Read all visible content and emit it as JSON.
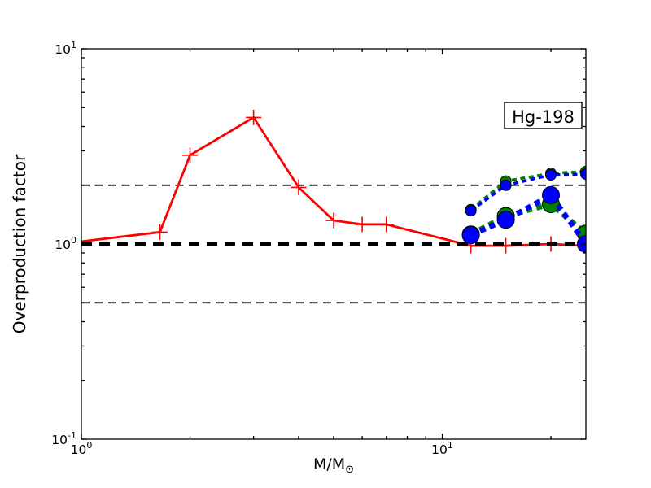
{
  "figure": {
    "background": "#ffffff"
  },
  "legend": {
    "label": "Hg-198"
  },
  "chart_data": {
    "type": "line",
    "title": "",
    "xlabel_main": "M/M",
    "xlabel_sub": "⊙",
    "ylabel": "Overproduction factor",
    "xscale": "log",
    "yscale": "log",
    "xlim": [
      1,
      25
    ],
    "ylim": [
      0.1,
      10
    ],
    "grid": false,
    "x_ticks": [
      {
        "v": 1,
        "base": "10",
        "exp": "0"
      },
      {
        "v": 10,
        "base": "10",
        "exp": "1"
      }
    ],
    "x_minor_ticks": [
      2,
      3,
      4,
      5,
      6,
      7,
      8,
      9,
      20
    ],
    "y_ticks": [
      {
        "v": 0.1,
        "base": "10",
        "exp": "-1"
      },
      {
        "v": 1,
        "base": "10",
        "exp": "0"
      },
      {
        "v": 10,
        "base": "10",
        "exp": "1"
      }
    ],
    "y_minor_ticks": [
      0.2,
      0.3,
      0.4,
      0.5,
      0.6,
      0.7,
      0.8,
      0.9,
      2,
      3,
      4,
      5,
      6,
      7,
      8,
      9
    ],
    "reference_lines": [
      {
        "name": "upper-tolerance-line",
        "y": 2.0,
        "color": "#000000",
        "lw": 1.7,
        "dash": [
          10,
          6.5
        ],
        "z": 2
      },
      {
        "name": "lower-tolerance-line",
        "y": 0.5,
        "color": "#000000",
        "lw": 1.7,
        "dash": [
          10,
          6.5
        ],
        "z": 2
      },
      {
        "name": "unity-reference-line",
        "y": 1.0,
        "color": "#000000",
        "lw": 4.8,
        "dash": [
          13,
          9
        ],
        "z": 4
      }
    ],
    "series": [
      {
        "name": "red-plus-series",
        "color": "#ff0000",
        "lw": 2.8,
        "marker": "plus",
        "marker_size": 9.5,
        "z": 3,
        "points": [
          [
            1,
            1.03
          ],
          [
            1.65,
            1.15
          ],
          [
            2,
            2.85
          ],
          [
            3,
            4.45
          ],
          [
            4,
            1.95
          ],
          [
            5,
            1.32
          ],
          [
            6,
            1.26
          ],
          [
            7,
            1.26
          ],
          [
            12,
            0.98
          ],
          [
            15,
            0.98
          ],
          [
            20,
            1.0
          ],
          [
            25,
            0.98
          ]
        ],
        "marker_points": [
          [
            1.65,
            1.15
          ],
          [
            2,
            2.85
          ],
          [
            3,
            4.45
          ],
          [
            4,
            1.95
          ],
          [
            5,
            1.32
          ],
          [
            6,
            1.26
          ],
          [
            7,
            1.26
          ],
          [
            12,
            0.98
          ],
          [
            15,
            0.98
          ],
          [
            20,
            1.0
          ],
          [
            25,
            0.98
          ]
        ]
      },
      {
        "name": "green-dashed-small-series",
        "color": "#008000",
        "lw": 3.6,
        "dash": [
          6,
          4.5
        ],
        "marker": "circle",
        "marker_size": 6.5,
        "marker_edge": "#000000",
        "z": 5,
        "points": [
          [
            12,
            1.5
          ],
          [
            15,
            2.1
          ],
          [
            20,
            2.3
          ],
          [
            25,
            2.35
          ]
        ]
      },
      {
        "name": "blue-dashed-small-series",
        "color": "#0000ff",
        "lw": 3.6,
        "dash": [
          6,
          4.5
        ],
        "marker": "circle",
        "marker_size": 6.5,
        "marker_edge": "#000000",
        "z": 6,
        "points": [
          [
            12,
            1.48
          ],
          [
            15,
            2.0
          ],
          [
            20,
            2.26
          ],
          [
            25,
            2.28
          ]
        ]
      },
      {
        "name": "green-dashed-large-series",
        "color": "#008000",
        "lw": 6.5,
        "dash": [
          7,
          5.5
        ],
        "marker": "circle",
        "marker_size": 10.5,
        "marker_edge": "#000000",
        "z": 7,
        "points": [
          [
            12,
            1.12
          ],
          [
            15,
            1.39
          ],
          [
            20,
            1.6
          ],
          [
            25,
            1.13
          ]
        ]
      },
      {
        "name": "blue-dashed-large-series",
        "color": "#0000ff",
        "lw": 6.5,
        "dash": [
          7,
          5.5
        ],
        "marker": "circle",
        "marker_size": 10.5,
        "marker_edge": "#000000",
        "z": 8,
        "points": [
          [
            12,
            1.11
          ],
          [
            15,
            1.33
          ],
          [
            20,
            1.78
          ],
          [
            25,
            1.0
          ]
        ]
      }
    ]
  }
}
